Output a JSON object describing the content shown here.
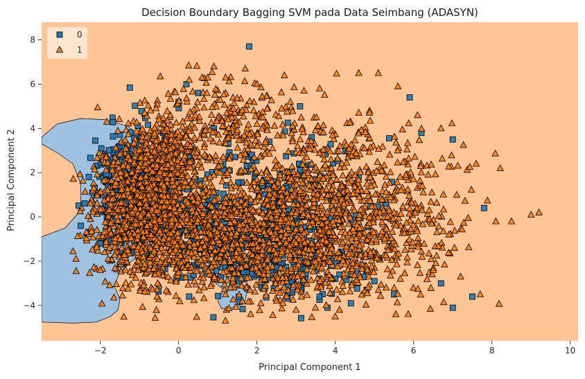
{
  "chart_data": {
    "type": "scatter",
    "title": "Decision Boundary Bagging SVM pada Data Seimbang (ADASYN)",
    "xlabel": "Principal Component 1",
    "ylabel": "Principal Component 2",
    "xlim": [
      -3.5,
      10.2
    ],
    "ylim": [
      -5.6,
      8.8
    ],
    "xticks": [
      -2,
      0,
      2,
      4,
      6,
      8,
      10
    ],
    "yticks": [
      -4,
      -2,
      0,
      2,
      4,
      6,
      8
    ],
    "grid": false,
    "legend_position": "top-left",
    "colors": {
      "class0_fill": "#1f77b4",
      "class1_fill": "#ff7f0e",
      "region0": "#9ec2df",
      "region1": "#ffc594",
      "edge": "#000000"
    },
    "series": [
      {
        "name": "0",
        "marker": "square",
        "points": [
          [
            -2.5,
            -0.4
          ],
          [
            -2.2,
            1.1
          ],
          [
            -2.0,
            -1.2
          ],
          [
            -1.8,
            0.5
          ],
          [
            -1.6,
            2.6
          ],
          [
            -1.4,
            -2.1
          ],
          [
            -1.2,
            3.2
          ],
          [
            -1.0,
            1.6
          ],
          [
            -0.8,
            -0.3
          ],
          [
            -0.6,
            2.9
          ],
          [
            -0.4,
            3.8
          ],
          [
            -0.2,
            1.2
          ],
          [
            0.0,
            5.2
          ],
          [
            0.2,
            6.0
          ],
          [
            0.5,
            5.6
          ],
          [
            0.9,
            4.0
          ],
          [
            1.3,
            2.1
          ],
          [
            1.5,
            -0.6
          ],
          [
            1.8,
            7.7
          ],
          [
            2.0,
            -2.6
          ],
          [
            2.2,
            -3.2
          ],
          [
            2.5,
            -2.3
          ],
          [
            2.9,
            -3.4
          ],
          [
            3.1,
            5.0
          ],
          [
            3.4,
            3.6
          ],
          [
            3.6,
            -3.6
          ],
          [
            3.8,
            -4.1
          ],
          [
            4.0,
            -2.8
          ],
          [
            4.4,
            -3.9
          ],
          [
            4.8,
            -3.3
          ],
          [
            5.0,
            -2.9
          ],
          [
            5.5,
            -3.5
          ],
          [
            5.9,
            5.4
          ],
          [
            6.2,
            3.8
          ],
          [
            6.7,
            -3.0
          ],
          [
            7.0,
            3.5
          ],
          [
            7.0,
            -4.1
          ],
          [
            7.5,
            -3.6
          ],
          [
            7.8,
            0.4
          ],
          [
            2.6,
            0.9
          ],
          [
            3.0,
            0.2
          ],
          [
            3.2,
            -0.9
          ],
          [
            1.0,
            -1.8
          ],
          [
            0.7,
            -2.5
          ],
          [
            1.6,
            -1.9
          ],
          [
            2.3,
            1.4
          ],
          [
            4.6,
            1.8
          ],
          [
            5.3,
            0.6
          ]
        ]
      },
      {
        "name": "1",
        "marker": "triangle",
        "points": [
          [
            -2.0,
            -2.4
          ],
          [
            -1.7,
            0.8
          ],
          [
            -1.5,
            -1.0
          ],
          [
            -1.2,
            2.0
          ],
          [
            -0.9,
            -1.8
          ],
          [
            -0.5,
            4.4
          ],
          [
            -0.3,
            4.0
          ],
          [
            0.3,
            3.2
          ],
          [
            0.6,
            6.3
          ],
          [
            0.9,
            6.8
          ],
          [
            1.2,
            6.3
          ],
          [
            1.7,
            6.7
          ],
          [
            2.0,
            6.0
          ],
          [
            2.7,
            6.4
          ],
          [
            3.2,
            5.7
          ],
          [
            3.6,
            5.8
          ],
          [
            4.6,
            6.5
          ],
          [
            5.1,
            6.5
          ],
          [
            5.6,
            5.9
          ],
          [
            6.1,
            4.6
          ],
          [
            6.7,
            4.0
          ],
          [
            7.1,
            1.0
          ],
          [
            7.6,
            2.4
          ],
          [
            8.1,
            -0.2
          ],
          [
            8.5,
            -0.2
          ],
          [
            9.0,
            0.1
          ],
          [
            9.2,
            0.2
          ],
          [
            7.7,
            -3.5
          ],
          [
            7.2,
            -2.7
          ],
          [
            6.5,
            -2.4
          ],
          [
            5.3,
            -3.2
          ],
          [
            4.0,
            -4.5
          ],
          [
            3.0,
            -4.2
          ],
          [
            2.1,
            -3.9
          ],
          [
            1.2,
            -3.5
          ],
          [
            0.4,
            -2.9
          ],
          [
            -0.6,
            -2.6
          ],
          [
            2.4,
            3.1
          ],
          [
            3.9,
            2.2
          ],
          [
            4.3,
            0.9
          ],
          [
            5.8,
            1.9
          ],
          [
            6.4,
            0.3
          ],
          [
            6.9,
            -0.8
          ],
          [
            3.4,
            -1.2
          ],
          [
            2.8,
            -0.5
          ],
          [
            1.9,
            0.3
          ],
          [
            0.8,
            1.8
          ],
          [
            4.9,
            -1.6
          ]
        ]
      }
    ],
    "boundary_regions": [
      {
        "class": "0",
        "outline": [
          [
            -3.5,
            3.6
          ],
          [
            -3.1,
            4.2
          ],
          [
            -2.5,
            4.45
          ],
          [
            -1.9,
            4.4
          ],
          [
            -1.3,
            4.1
          ],
          [
            -0.8,
            3.4
          ],
          [
            -0.5,
            2.4
          ],
          [
            -0.5,
            1.3
          ],
          [
            -0.45,
            0.6
          ],
          [
            -0.3,
            -0.1
          ],
          [
            -0.3,
            -0.8
          ],
          [
            -0.7,
            -1.4
          ],
          [
            -1.2,
            -2.0
          ],
          [
            -1.5,
            -2.5
          ],
          [
            -1.65,
            -3.1
          ],
          [
            -1.5,
            -3.7
          ],
          [
            -1.55,
            -4.2
          ],
          [
            -1.75,
            -4.5
          ],
          [
            -2.1,
            -4.75
          ],
          [
            -2.7,
            -4.8
          ],
          [
            -3.5,
            -4.75
          ],
          [
            -3.5,
            -0.9
          ],
          [
            -2.9,
            -0.5
          ],
          [
            -2.5,
            0.3
          ],
          [
            -2.5,
            1.5
          ],
          [
            -2.7,
            2.4
          ],
          [
            -3.1,
            2.9
          ],
          [
            -3.5,
            3.3
          ]
        ]
      },
      {
        "class": "0",
        "outline": [
          [
            1.0,
            -2.6
          ],
          [
            1.5,
            -2.85
          ],
          [
            1.75,
            -3.3
          ],
          [
            1.7,
            -3.8
          ],
          [
            1.45,
            -4.1
          ],
          [
            1.1,
            -4.15
          ],
          [
            1.0,
            -3.8
          ],
          [
            1.15,
            -3.3
          ],
          [
            0.95,
            -3.0
          ]
        ]
      }
    ],
    "density_clusters": [
      {
        "series": "1",
        "cx": -1.0,
        "cy": 0.3,
        "sx": 0.6,
        "sy": 1.6,
        "n": 900,
        "seed": 11
      },
      {
        "series": "1",
        "cx": -0.3,
        "cy": 2.4,
        "sx": 0.45,
        "sy": 1.1,
        "n": 300,
        "seed": 12
      },
      {
        "series": "0",
        "cx": -1.1,
        "cy": 1.2,
        "sx": 0.5,
        "sy": 1.4,
        "n": 320,
        "seed": 13
      },
      {
        "series": "1",
        "cx": 2.6,
        "cy": -1.3,
        "sx": 1.5,
        "sy": 1.3,
        "n": 750,
        "seed": 14
      },
      {
        "series": "1",
        "cx": 3.2,
        "cy": 1.4,
        "sx": 1.5,
        "sy": 1.6,
        "n": 520,
        "seed": 15
      },
      {
        "series": "0",
        "cx": 2.2,
        "cy": -1.8,
        "sx": 1.2,
        "sy": 1.1,
        "n": 230,
        "seed": 16
      },
      {
        "series": "0",
        "cx": 2.5,
        "cy": 0.8,
        "sx": 1.1,
        "sy": 1.3,
        "n": 150,
        "seed": 17
      },
      {
        "series": "1",
        "cx": 5.0,
        "cy": -0.3,
        "sx": 1.1,
        "sy": 1.8,
        "n": 340,
        "seed": 18
      },
      {
        "series": "1",
        "cx": 1.2,
        "cy": 4.2,
        "sx": 1.0,
        "sy": 1.0,
        "n": 220,
        "seed": 19
      },
      {
        "series": "0",
        "cx": 0.4,
        "cy": 0.0,
        "sx": 0.7,
        "sy": 1.4,
        "n": 120,
        "seed": 20
      },
      {
        "series": "1",
        "cx": 0.7,
        "cy": -1.0,
        "sx": 0.8,
        "sy": 1.1,
        "n": 320,
        "seed": 21
      }
    ]
  }
}
